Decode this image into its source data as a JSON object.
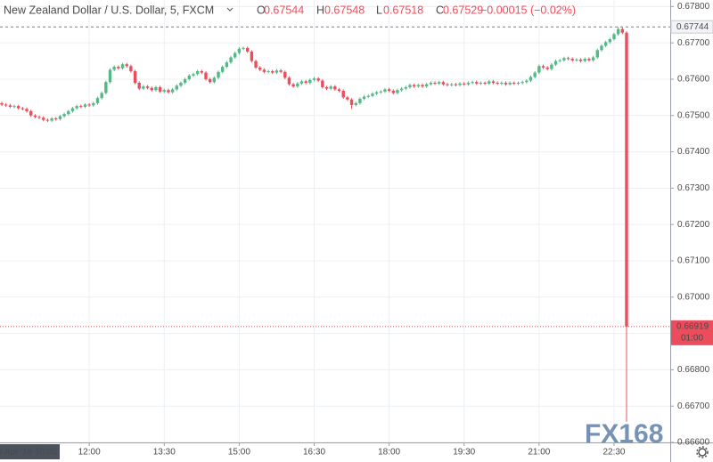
{
  "chart_data": {
    "type": "candlestick",
    "header": {
      "symbol": "New Zealand Dollar / U.S. Dollar, 5, FXCM",
      "ohlc": [
        {
          "key": "O",
          "value": 0.67544
        },
        {
          "key": "H",
          "value": 0.67548
        },
        {
          "key": "L",
          "value": 0.67518
        },
        {
          "key": "C",
          "value": 0.67529
        }
      ],
      "change": "−0.00015 (−0.02%)"
    },
    "crosshair_time": "6 Apr '19  10:05",
    "high_line": 0.67744,
    "last_price": 0.66919,
    "countdown": "01:00",
    "watermark": "FX168",
    "up_color": "#53b987",
    "down_color": "#eb4d5c",
    "grid": true,
    "ylim": [
      0.666,
      0.67818
    ],
    "yticks": [
      {
        "value": 0.666,
        "label": "0.66600"
      },
      {
        "value": 0.667,
        "label": "0.66700"
      },
      {
        "value": 0.668,
        "label": "0.66800"
      },
      {
        "value": 0.669,
        "label": "0.66900"
      },
      {
        "value": 0.67,
        "label": "0.67000"
      },
      {
        "value": 0.671,
        "label": "0.67100"
      },
      {
        "value": 0.672,
        "label": "0.67200"
      },
      {
        "value": 0.673,
        "label": "0.67300"
      },
      {
        "value": 0.674,
        "label": "0.67400"
      },
      {
        "value": 0.675,
        "label": "0.67500"
      },
      {
        "value": 0.676,
        "label": "0.67600"
      },
      {
        "value": 0.677,
        "label": "0.67700"
      },
      {
        "value": 0.678,
        "label": "0.67800"
      }
    ],
    "xticks": [
      "12:00",
      "13:30",
      "15:00",
      "16:30",
      "18:00",
      "19:30",
      "21:00",
      "22:30"
    ],
    "x": [
      "10:15",
      "10:20",
      "10:25",
      "10:30",
      "10:35",
      "10:40",
      "10:45",
      "10:50",
      "10:55",
      "11:00",
      "11:05",
      "11:10",
      "11:15",
      "11:20",
      "11:25",
      "11:30",
      "11:35",
      "11:40",
      "11:45",
      "11:50",
      "11:55",
      "12:00",
      "12:05",
      "12:10",
      "12:15",
      "12:20",
      "12:25",
      "12:30",
      "12:35",
      "12:40",
      "12:45",
      "12:50",
      "12:55",
      "13:00",
      "13:05",
      "13:10",
      "13:15",
      "13:20",
      "13:25",
      "13:30",
      "13:35",
      "13:40",
      "13:45",
      "13:50",
      "13:55",
      "14:00",
      "14:05",
      "14:10",
      "14:15",
      "14:20",
      "14:25",
      "14:30",
      "14:35",
      "14:40",
      "14:45",
      "14:50",
      "14:55",
      "15:00",
      "15:05",
      "15:10",
      "15:15",
      "15:20",
      "15:25",
      "15:30",
      "15:35",
      "15:40",
      "15:45",
      "15:50",
      "15:55",
      "16:00",
      "16:05",
      "16:10",
      "16:15",
      "16:20",
      "16:25",
      "16:30",
      "16:35",
      "16:40",
      "16:45",
      "16:50",
      "16:55",
      "17:00",
      "17:05",
      "17:10",
      "17:15",
      "17:20",
      "17:25",
      "17:30",
      "17:35",
      "17:40",
      "17:45",
      "17:50",
      "17:55",
      "18:00",
      "18:05",
      "18:10",
      "18:15",
      "18:20",
      "18:25",
      "18:30",
      "18:35",
      "18:40",
      "18:45",
      "18:50",
      "18:55",
      "19:00",
      "19:05",
      "19:10",
      "19:15",
      "19:20",
      "19:25",
      "19:30",
      "19:35",
      "19:40",
      "19:45",
      "19:50",
      "19:55",
      "20:00",
      "20:05",
      "20:10",
      "20:15",
      "20:20",
      "20:25",
      "20:30",
      "20:35",
      "20:40",
      "20:45",
      "20:50",
      "20:55",
      "21:00",
      "21:05",
      "21:10",
      "21:15",
      "21:20",
      "21:25",
      "21:30",
      "21:35",
      "21:40",
      "21:45",
      "21:50",
      "21:55",
      "22:00",
      "22:05",
      "22:10",
      "22:15",
      "22:20",
      "22:25",
      "22:30",
      "22:35",
      "22:40",
      "22:45"
    ],
    "open": [
      0.67534,
      0.6753,
      0.67528,
      0.67524,
      0.67526,
      0.6752,
      0.67518,
      0.67512,
      0.675,
      0.67496,
      0.67494,
      0.67488,
      0.67486,
      0.67492,
      0.6749,
      0.67498,
      0.67504,
      0.67512,
      0.6752,
      0.67526,
      0.67524,
      0.6753,
      0.67528,
      0.67534,
      0.67548,
      0.67562,
      0.67592,
      0.67626,
      0.67634,
      0.6763,
      0.67641,
      0.67636,
      0.67622,
      0.6759,
      0.67574,
      0.6758,
      0.67576,
      0.6757,
      0.67578,
      0.67566,
      0.6757,
      0.67564,
      0.67572,
      0.67582,
      0.6759,
      0.676,
      0.6761,
      0.67614,
      0.67622,
      0.67618,
      0.676,
      0.67592,
      0.67604,
      0.6762,
      0.67634,
      0.67646,
      0.6766,
      0.67672,
      0.67684,
      0.67686,
      0.67676,
      0.6765,
      0.67632,
      0.67626,
      0.6762,
      0.67622,
      0.67618,
      0.67624,
      0.6762,
      0.67604,
      0.67586,
      0.6758,
      0.67588,
      0.67594,
      0.6759,
      0.67598,
      0.67602,
      0.67596,
      0.67578,
      0.67574,
      0.6758,
      0.67572,
      0.67568,
      0.6755,
      0.67544,
      0.67529,
      0.67534,
      0.67546,
      0.67552,
      0.67554,
      0.6756,
      0.67564,
      0.67566,
      0.67572,
      0.67568,
      0.67562,
      0.6757,
      0.67574,
      0.67578,
      0.67584,
      0.6758,
      0.67584,
      0.6758,
      0.67586,
      0.6759,
      0.67588,
      0.67592,
      0.67586,
      0.67584,
      0.67586,
      0.67584,
      0.67588,
      0.67586,
      0.6759,
      0.67592,
      0.67588,
      0.6759,
      0.67588,
      0.67594,
      0.6759,
      0.67588,
      0.6759,
      0.67586,
      0.6759,
      0.67588,
      0.6759,
      0.67592,
      0.67596,
      0.67606,
      0.67618,
      0.67636,
      0.67632,
      0.67628,
      0.6764,
      0.6765,
      0.67652,
      0.67658,
      0.67656,
      0.67652,
      0.67654,
      0.6765,
      0.67656,
      0.67652,
      0.6766,
      0.6768,
      0.67692,
      0.67702,
      0.6771,
      0.67724,
      0.67738,
      0.67728
    ],
    "high": [
      0.67538,
      0.67534,
      0.67532,
      0.6753,
      0.6753,
      0.67524,
      0.67522,
      0.67516,
      0.67504,
      0.675,
      0.67498,
      0.67492,
      0.67496,
      0.67496,
      0.67502,
      0.67508,
      0.67516,
      0.67524,
      0.6753,
      0.6753,
      0.67534,
      0.67534,
      0.67538,
      0.67552,
      0.67566,
      0.67596,
      0.6763,
      0.67638,
      0.67638,
      0.67645,
      0.67645,
      0.6764,
      0.67626,
      0.67594,
      0.67584,
      0.67584,
      0.6758,
      0.67582,
      0.67582,
      0.67574,
      0.67574,
      0.67576,
      0.67586,
      0.67594,
      0.67604,
      0.67614,
      0.67618,
      0.67626,
      0.67626,
      0.67622,
      0.67604,
      0.67608,
      0.67624,
      0.67638,
      0.6765,
      0.67664,
      0.67676,
      0.67688,
      0.6769,
      0.6769,
      0.6768,
      0.67654,
      0.67636,
      0.6763,
      0.67626,
      0.67626,
      0.67628,
      0.67628,
      0.67624,
      0.67608,
      0.6759,
      0.67592,
      0.67598,
      0.67598,
      0.67602,
      0.67606,
      0.67606,
      0.676,
      0.67582,
      0.67584,
      0.67584,
      0.67576,
      0.67572,
      0.67554,
      0.67548,
      0.67538,
      0.6755,
      0.67556,
      0.67558,
      0.67564,
      0.67568,
      0.6757,
      0.67576,
      0.67576,
      0.67572,
      0.67574,
      0.67578,
      0.67582,
      0.67588,
      0.67588,
      0.67588,
      0.67588,
      0.6759,
      0.67594,
      0.67594,
      0.67596,
      0.67596,
      0.6759,
      0.6759,
      0.6759,
      0.67592,
      0.67592,
      0.67594,
      0.67596,
      0.67596,
      0.67594,
      0.67594,
      0.67598,
      0.67598,
      0.67594,
      0.67594,
      0.67594,
      0.67594,
      0.67594,
      0.67594,
      0.67596,
      0.676,
      0.6761,
      0.67622,
      0.6764,
      0.6764,
      0.67636,
      0.67644,
      0.67654,
      0.67656,
      0.67662,
      0.67662,
      0.6766,
      0.67658,
      0.67658,
      0.6766,
      0.6766,
      0.67664,
      0.67684,
      0.67696,
      0.67706,
      0.67714,
      0.67728,
      0.67744,
      0.67742,
      0.67732
    ],
    "low": [
      0.67526,
      0.67524,
      0.6752,
      0.6752,
      0.67516,
      0.67514,
      0.67508,
      0.67496,
      0.67492,
      0.6749,
      0.67484,
      0.67482,
      0.67482,
      0.67486,
      0.67486,
      0.67494,
      0.675,
      0.67508,
      0.67516,
      0.6752,
      0.6752,
      0.67524,
      0.67524,
      0.6753,
      0.67544,
      0.67558,
      0.67588,
      0.67622,
      0.67626,
      0.67626,
      0.67632,
      0.67618,
      0.67586,
      0.6757,
      0.6757,
      0.67572,
      0.67566,
      0.67566,
      0.67562,
      0.67562,
      0.6756,
      0.6756,
      0.67568,
      0.67578,
      0.67586,
      0.67596,
      0.67606,
      0.6761,
      0.67614,
      0.67596,
      0.67588,
      0.67588,
      0.676,
      0.67616,
      0.6763,
      0.67642,
      0.67656,
      0.67668,
      0.6768,
      0.67672,
      0.67646,
      0.67628,
      0.67622,
      0.67616,
      0.67616,
      0.67614,
      0.67614,
      0.67616,
      0.676,
      0.67582,
      0.67576,
      0.67576,
      0.67584,
      0.67586,
      0.67586,
      0.67594,
      0.67592,
      0.67574,
      0.6757,
      0.6757,
      0.67568,
      0.67564,
      0.67546,
      0.6754,
      0.67518,
      0.67525,
      0.6753,
      0.67542,
      0.67548,
      0.6755,
      0.67556,
      0.6756,
      0.67562,
      0.67564,
      0.67558,
      0.67558,
      0.67566,
      0.6757,
      0.67574,
      0.67576,
      0.67576,
      0.67576,
      0.67576,
      0.67582,
      0.67584,
      0.67584,
      0.67582,
      0.6758,
      0.6758,
      0.6758,
      0.6758,
      0.67582,
      0.67582,
      0.67586,
      0.67584,
      0.67584,
      0.67584,
      0.67584,
      0.67586,
      0.67584,
      0.67584,
      0.67582,
      0.67582,
      0.67584,
      0.67584,
      0.67586,
      0.67588,
      0.67592,
      0.67602,
      0.67614,
      0.67628,
      0.67624,
      0.67624,
      0.67636,
      0.67646,
      0.67648,
      0.67652,
      0.67648,
      0.67648,
      0.67646,
      0.67646,
      0.67648,
      0.67648,
      0.67656,
      0.67676,
      0.67688,
      0.67698,
      0.67706,
      0.6772,
      0.67724,
      0.66657
    ],
    "close": [
      0.6753,
      0.67528,
      0.67524,
      0.67526,
      0.6752,
      0.67518,
      0.67512,
      0.675,
      0.67496,
      0.67494,
      0.67488,
      0.67486,
      0.67492,
      0.6749,
      0.67498,
      0.67504,
      0.67512,
      0.6752,
      0.67526,
      0.67524,
      0.6753,
      0.67528,
      0.67534,
      0.67548,
      0.67562,
      0.67592,
      0.67626,
      0.67634,
      0.6763,
      0.67641,
      0.67636,
      0.67622,
      0.6759,
      0.67574,
      0.6758,
      0.67576,
      0.6757,
      0.67578,
      0.67566,
      0.6757,
      0.67564,
      0.67572,
      0.67582,
      0.6759,
      0.676,
      0.6761,
      0.67614,
      0.67622,
      0.67618,
      0.676,
      0.67592,
      0.67604,
      0.6762,
      0.67634,
      0.67646,
      0.6766,
      0.67672,
      0.67684,
      0.67686,
      0.67676,
      0.6765,
      0.67632,
      0.67626,
      0.6762,
      0.67622,
      0.67618,
      0.67624,
      0.6762,
      0.67604,
      0.67586,
      0.6758,
      0.67588,
      0.67594,
      0.6759,
      0.67598,
      0.67602,
      0.67596,
      0.67578,
      0.67574,
      0.6758,
      0.67572,
      0.67568,
      0.6755,
      0.67544,
      0.67529,
      0.67534,
      0.67546,
      0.67552,
      0.67554,
      0.6756,
      0.67564,
      0.67566,
      0.67572,
      0.67568,
      0.67562,
      0.6757,
      0.67574,
      0.67578,
      0.67584,
      0.6758,
      0.67584,
      0.6758,
      0.67586,
      0.6759,
      0.67588,
      0.67592,
      0.67586,
      0.67584,
      0.67586,
      0.67584,
      0.67588,
      0.67586,
      0.6759,
      0.67592,
      0.67588,
      0.6759,
      0.67588,
      0.67594,
      0.6759,
      0.67588,
      0.6759,
      0.67586,
      0.6759,
      0.67588,
      0.6759,
      0.67592,
      0.67596,
      0.67606,
      0.67618,
      0.67636,
      0.67632,
      0.67628,
      0.6764,
      0.6765,
      0.67652,
      0.67658,
      0.67656,
      0.67652,
      0.67654,
      0.6765,
      0.67656,
      0.67652,
      0.6766,
      0.6768,
      0.67692,
      0.67702,
      0.6771,
      0.67724,
      0.67738,
      0.67728,
      0.66919
    ]
  }
}
